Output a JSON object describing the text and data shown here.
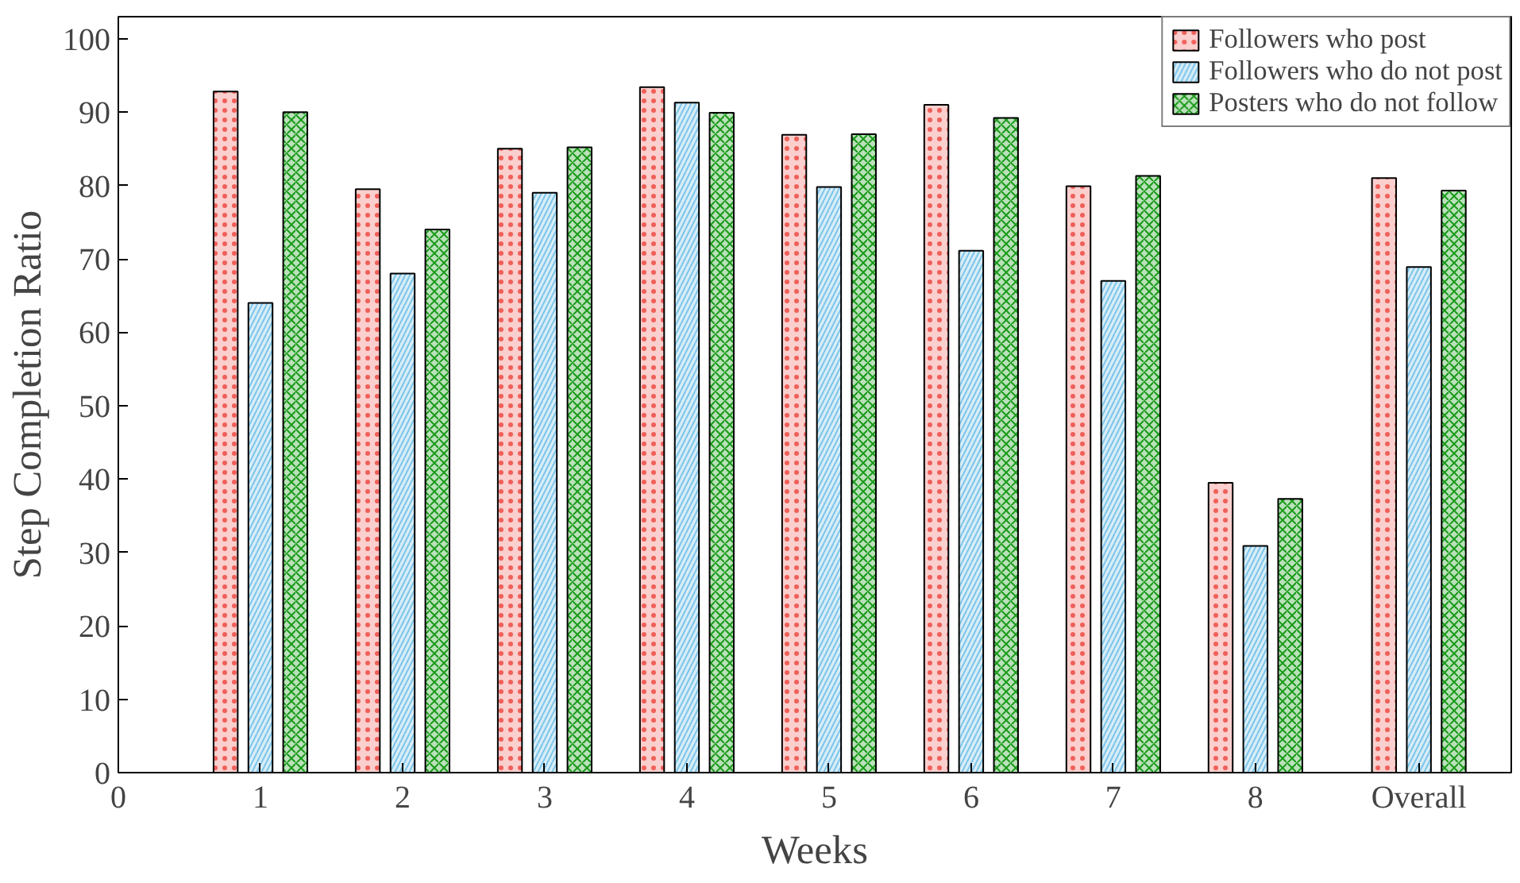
{
  "chart_data": {
    "type": "bar",
    "xlabel": "Weeks",
    "ylabel": "Step Completion Ratio",
    "x": [
      1,
      2,
      3,
      4,
      5,
      6,
      7,
      8,
      9.15
    ],
    "xlim": [
      0,
      9.8
    ],
    "xticks": [
      0,
      1,
      2,
      3,
      4,
      5,
      6,
      7,
      8,
      {
        "value": 9.15,
        "label": "Overall"
      }
    ],
    "ylim": [
      0,
      103
    ],
    "yticks": [
      0,
      10,
      20,
      30,
      40,
      50,
      60,
      70,
      80,
      90,
      100
    ],
    "grid": false,
    "legend": "top right",
    "series": [
      {
        "name": "Followers who post",
        "color": "#f0605a",
        "values": [
          92.8,
          79.5,
          85,
          93.4,
          86.9,
          91,
          79.9,
          39.5,
          81
        ]
      },
      {
        "name": "Followers who do not post",
        "color": "#7cc4e8",
        "values": [
          64,
          68,
          79,
          91.3,
          79.8,
          71.1,
          67,
          30.9,
          68.9
        ]
      },
      {
        "name": "Posters who do not follow",
        "color": "#1a9a1a",
        "values": [
          90,
          74,
          85.2,
          89.9,
          87,
          89.2,
          81.3,
          37.3,
          79.3
        ]
      }
    ]
  }
}
